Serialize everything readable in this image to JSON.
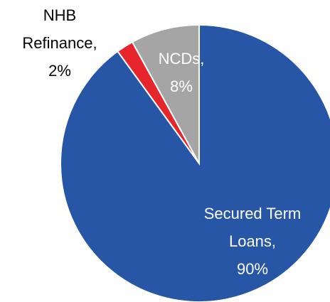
{
  "chart_data": {
    "type": "pie",
    "categories": [
      "Secured Term Loans,",
      "NHB Refinance,",
      "NCDs,"
    ],
    "values": [
      90,
      2,
      8
    ],
    "value_labels": [
      "90%",
      "2%",
      "8%"
    ],
    "colors": [
      "#2756a6",
      "#e6252d",
      "#a5a5a5"
    ],
    "label_colors": [
      "#ffffff",
      "#000000",
      "#ffffff"
    ]
  }
}
